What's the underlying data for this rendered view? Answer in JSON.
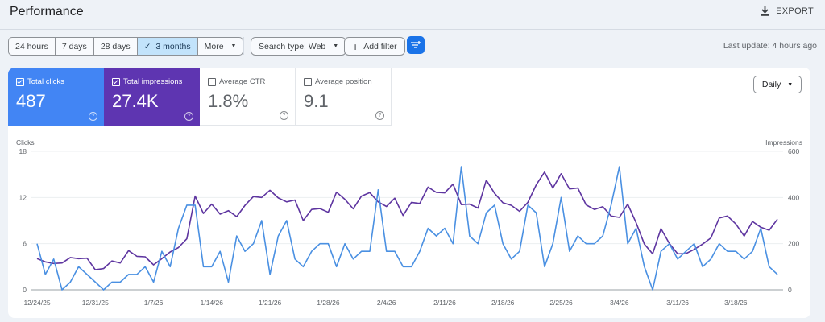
{
  "header": {
    "title": "Performance",
    "export_label": "EXPORT"
  },
  "filters": {
    "ranges": [
      "24 hours",
      "7 days",
      "28 days",
      "3 months",
      "More"
    ],
    "selected_range": "3 months",
    "search_type": "Search type: Web",
    "add_filter": "Add filter",
    "last_update": "Last update: 4 hours ago"
  },
  "metrics": [
    {
      "label": "Total clicks",
      "value": "487",
      "checked": true,
      "color": "#4285f4"
    },
    {
      "label": "Total impressions",
      "value": "27.4K",
      "checked": true,
      "color": "#5e35b1"
    },
    {
      "label": "Average CTR",
      "value": "1.8%",
      "checked": false
    },
    {
      "label": "Average position",
      "value": "9.1",
      "checked": false
    }
  ],
  "granularity": "Daily",
  "chart_data": {
    "type": "line",
    "ylabel_left": "Clicks",
    "ylabel_right": "Impressions",
    "ylim_left": [
      0,
      18
    ],
    "yticks_left": [
      "0",
      "6",
      "12",
      "18"
    ],
    "ylim_right": [
      0,
      600
    ],
    "yticks_right": [
      "0",
      "200",
      "400",
      "600"
    ],
    "grid": true,
    "xtick_labels": [
      "12/24/25",
      "12/31/25",
      "1/7/26",
      "1/14/26",
      "1/21/26",
      "1/28/26",
      "2/4/26",
      "2/11/26",
      "2/18/26",
      "2/25/26",
      "3/4/26",
      "3/11/26",
      "3/18/26"
    ],
    "x": [
      "12/24/25",
      "12/25/25",
      "12/26/25",
      "12/27/25",
      "12/28/25",
      "12/29/25",
      "12/30/25",
      "12/31/25",
      "1/1/26",
      "1/2/26",
      "1/3/26",
      "1/4/26",
      "1/5/26",
      "1/6/26",
      "1/7/26",
      "1/8/26",
      "1/9/26",
      "1/10/26",
      "1/11/26",
      "1/12/26",
      "1/13/26",
      "1/14/26",
      "1/15/26",
      "1/16/26",
      "1/17/26",
      "1/18/26",
      "1/19/26",
      "1/20/26",
      "1/21/26",
      "1/22/26",
      "1/23/26",
      "1/24/26",
      "1/25/26",
      "1/26/26",
      "1/27/26",
      "1/28/26",
      "1/29/26",
      "1/30/26",
      "1/31/26",
      "2/1/26",
      "2/2/26",
      "2/3/26",
      "2/4/26",
      "2/5/26",
      "2/6/26",
      "2/7/26",
      "2/8/26",
      "2/9/26",
      "2/10/26",
      "2/11/26",
      "2/12/26",
      "2/13/26",
      "2/14/26",
      "2/15/26",
      "2/16/26",
      "2/17/26",
      "2/18/26",
      "2/19/26",
      "2/20/26",
      "2/21/26",
      "2/22/26",
      "2/23/26",
      "2/24/26",
      "2/25/26",
      "2/26/26",
      "2/27/26",
      "2/28/26",
      "3/1/26",
      "3/2/26",
      "3/3/26",
      "3/4/26",
      "3/5/26",
      "3/6/26",
      "3/7/26",
      "3/8/26",
      "3/9/26",
      "3/10/26",
      "3/11/26",
      "3/12/26",
      "3/13/26",
      "3/14/26",
      "3/15/26",
      "3/16/26",
      "3/17/26",
      "3/18/26",
      "3/19/26",
      "3/20/26",
      "3/21/26",
      "3/22/26",
      "3/23/26"
    ],
    "series": [
      {
        "name": "Clicks",
        "axis": "left",
        "color": "#4a90e2",
        "values": [
          6,
          2,
          4,
          0,
          1,
          3,
          2,
          1,
          0,
          1,
          1,
          2,
          2,
          3,
          1,
          5,
          3,
          8,
          11,
          11,
          3,
          3,
          5,
          1,
          7,
          5,
          6,
          9,
          2,
          7,
          9,
          4,
          3,
          5,
          6,
          6,
          3,
          6,
          4,
          5,
          5,
          13,
          5,
          5,
          3,
          3,
          5,
          8,
          7,
          8,
          6,
          16,
          7,
          6,
          10,
          11,
          6,
          4,
          5,
          11,
          10,
          3,
          6,
          12,
          5,
          7,
          6,
          6,
          7,
          11,
          16,
          6,
          8,
          3,
          0,
          5,
          6,
          4,
          5,
          6,
          3,
          4,
          6,
          5,
          5,
          4,
          5,
          8,
          3,
          2
        ]
      },
      {
        "name": "Impressions",
        "axis": "right",
        "color": "#5e35a0",
        "values": [
          135,
          121,
          114,
          116,
          140,
          135,
          137,
          87,
          92,
          125,
          116,
          170,
          145,
          143,
          108,
          135,
          164,
          183,
          221,
          406,
          331,
          371,
          328,
          343,
          317,
          366,
          404,
          400,
          431,
          398,
          381,
          389,
          300,
          348,
          352,
          336,
          423,
          392,
          351,
          406,
          421,
          381,
          361,
          397,
          322,
          379,
          374,
          445,
          422,
          420,
          458,
          369,
          371,
          354,
          475,
          418,
          377,
          366,
          340,
          379,
          455,
          510,
          441,
          503,
          437,
          441,
          368,
          348,
          360,
          320,
          314,
          371,
          291,
          198,
          156,
          265,
          201,
          156,
          157,
          175,
          198,
          225,
          311,
          320,
          285,
          233,
          296,
          271,
          258,
          306
        ]
      }
    ]
  }
}
